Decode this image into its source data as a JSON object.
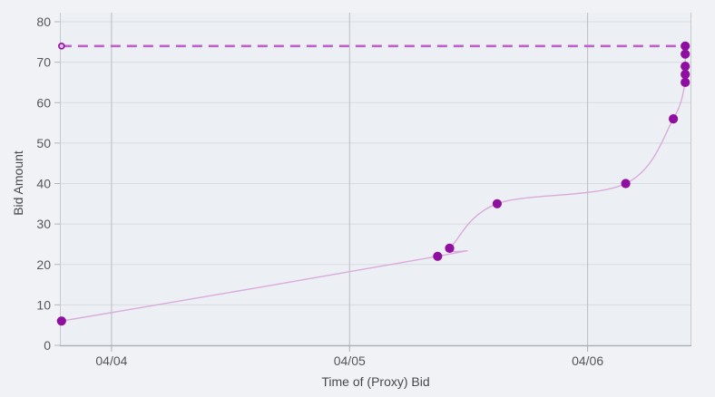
{
  "chart_data": {
    "type": "scatter",
    "title": "",
    "xlabel": "Time of (Proxy) Bid",
    "ylabel": "Bid Amount",
    "legend": "none",
    "grid": true,
    "x_axis": {
      "tick_labels": [
        "04/04",
        "04/05",
        "04/06"
      ],
      "tick_positions": [
        1,
        2,
        3
      ],
      "range": [
        0.783,
        3.436
      ],
      "unit": "day index (04/04 = 1)"
    },
    "y_axis": {
      "tick_labels": [
        "0",
        "10",
        "20",
        "30",
        "40",
        "50",
        "60",
        "70",
        "80"
      ],
      "tick_positions": [
        0,
        10,
        20,
        30,
        40,
        50,
        60,
        70,
        80
      ],
      "range": [
        0,
        80
      ]
    },
    "series": [
      {
        "name": "proxy-bids",
        "mode": "lines+markers",
        "line_shape": "spline",
        "x": [
          0.79,
          2.37,
          2.42,
          2.62,
          3.16,
          3.36,
          3.41,
          3.41,
          3.41,
          3.41,
          3.41
        ],
        "y": [
          6,
          22,
          24,
          35,
          40,
          56,
          65,
          67,
          69,
          72,
          74
        ]
      },
      {
        "name": "high-bid-level",
        "mode": "dashed-line",
        "y": 74,
        "x_start": 0.79,
        "x_end": 3.41
      }
    ]
  },
  "colors": {
    "paper_bg": "#f0f2f5",
    "plot_bg": "#eceff4",
    "grid_horizontal": "#d8dbe1",
    "grid_vertical": "#b9bdc4",
    "axis_line": "#a9adb4",
    "side_axis_line": "#c6c9ce",
    "tick_mark": "#b2b6bc",
    "tick_label": "#53575c",
    "axis_title": "#45494e",
    "marker": "#8f10a0",
    "spline_line": "#d9abdb",
    "dashed_line": "#c05fc5",
    "dash_start_marker_fill": "#e3b9e6"
  }
}
